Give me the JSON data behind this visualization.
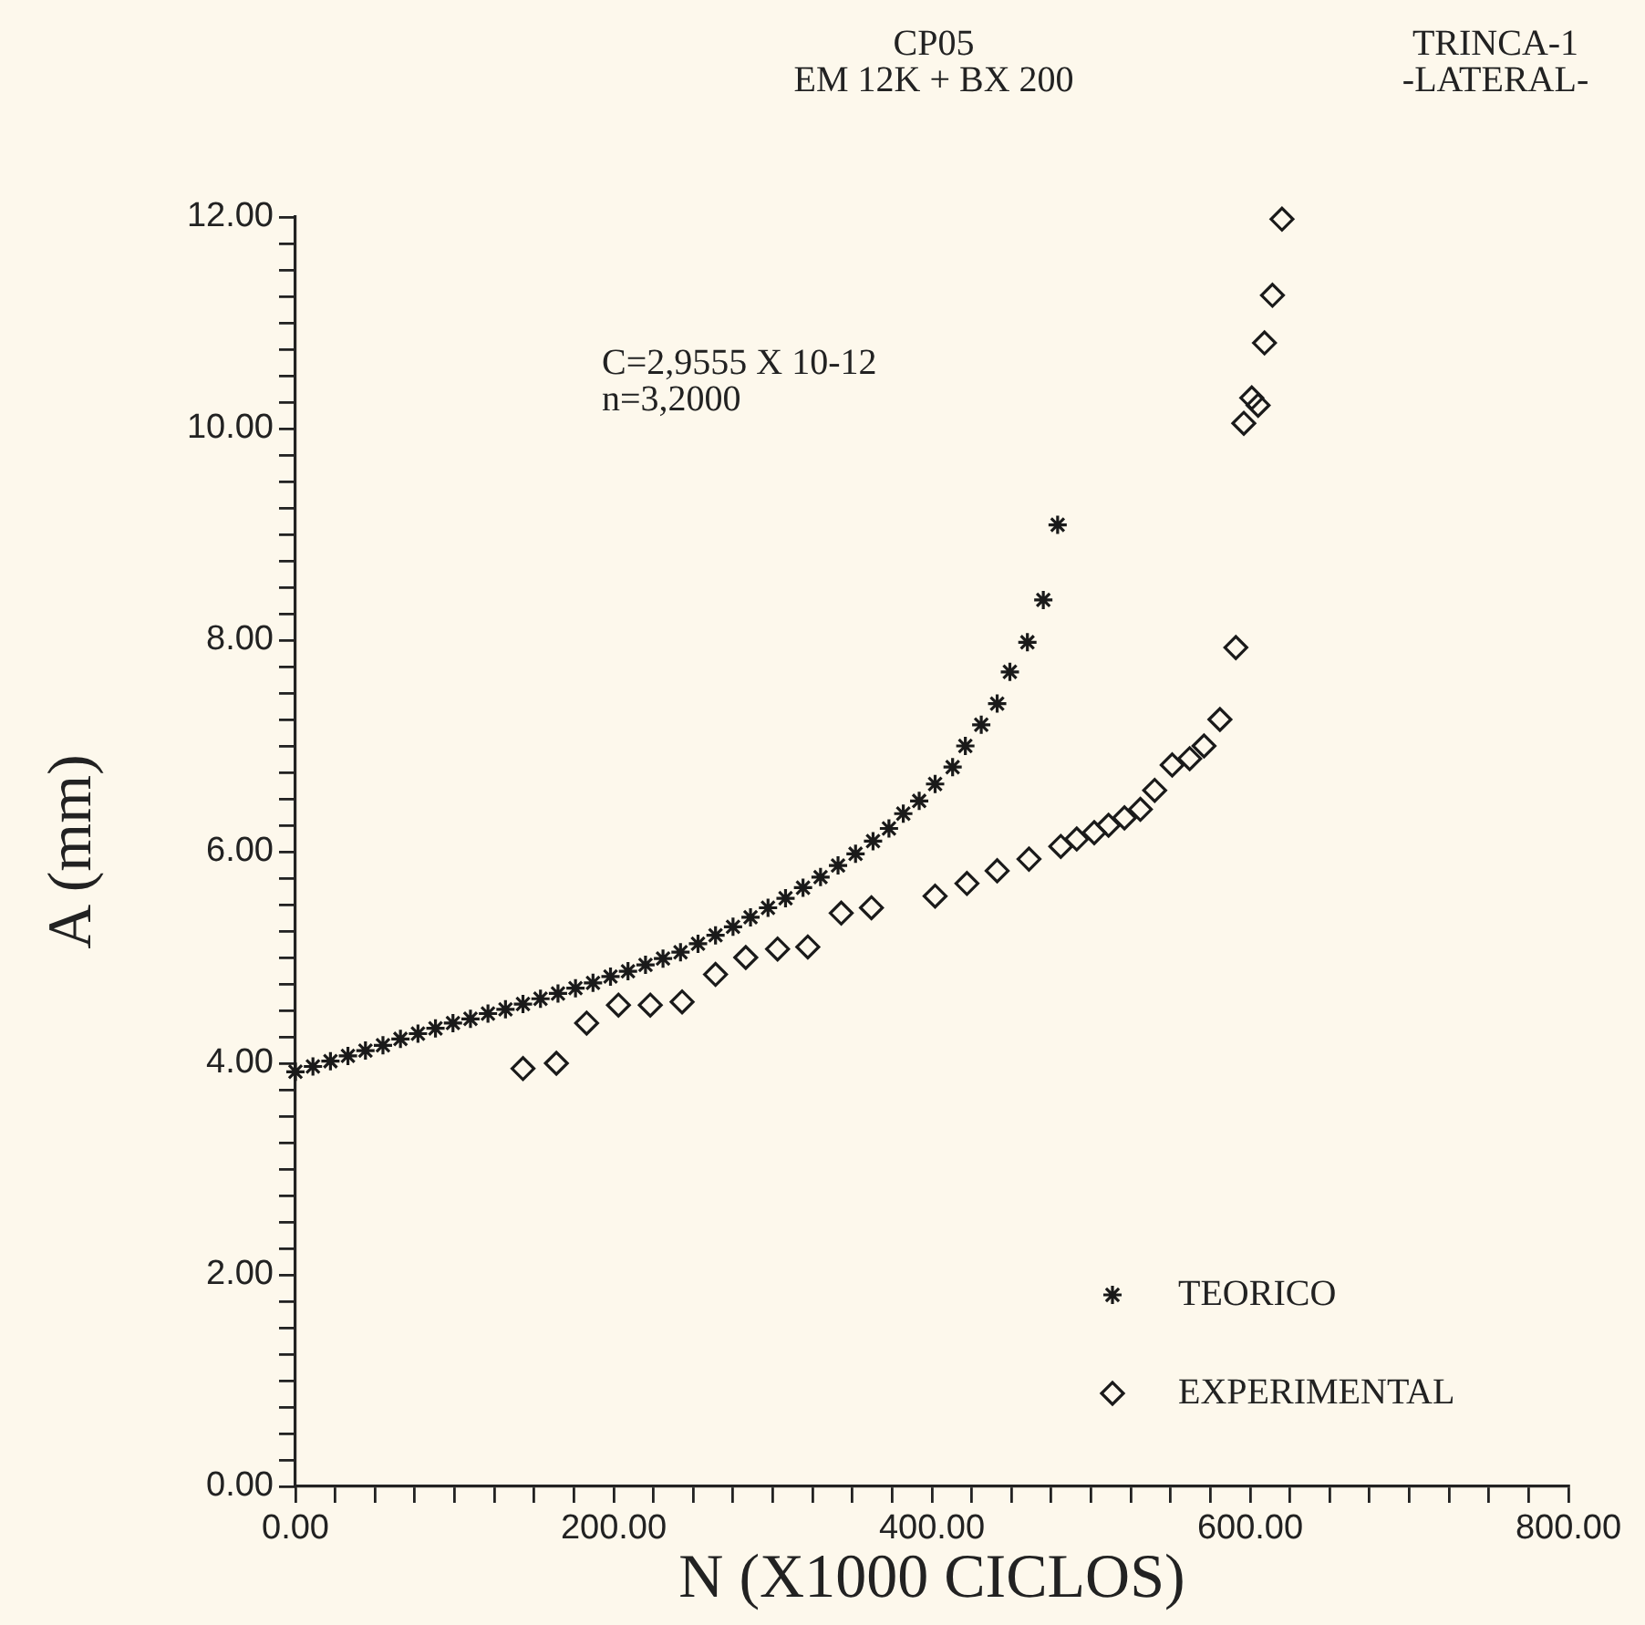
{
  "chart_data": {
    "type": "scatter",
    "title": "CP05",
    "subtitle": "EM 12K + BX 200",
    "xlabel": "N (X1000 CICLOS)",
    "ylabel": "A (mm)",
    "annotations": [
      "TRINCA-1\n-LATERAL-",
      "C=2,9555 X 10-12\nn=3,2000"
    ],
    "legend": "bottom right",
    "grid": false,
    "xlim": [
      0,
      800
    ],
    "ylim": [
      0,
      12
    ],
    "xticks": [
      {
        "value": 0,
        "label": "0.00"
      },
      {
        "value": 25,
        "label": null
      },
      {
        "value": 50,
        "label": null
      },
      {
        "value": 75,
        "label": null
      },
      {
        "value": 100,
        "label": null
      },
      {
        "value": 125,
        "label": null
      },
      {
        "value": 150,
        "label": null
      },
      {
        "value": 175,
        "label": null
      },
      {
        "value": 200,
        "label": "200.00"
      },
      {
        "value": 225,
        "label": null
      },
      {
        "value": 250,
        "label": null
      },
      {
        "value": 275,
        "label": null
      },
      {
        "value": 300,
        "label": null
      },
      {
        "value": 325,
        "label": null
      },
      {
        "value": 350,
        "label": null
      },
      {
        "value": 375,
        "label": null
      },
      {
        "value": 400,
        "label": "400.00"
      },
      {
        "value": 425,
        "label": null
      },
      {
        "value": 450,
        "label": null
      },
      {
        "value": 475,
        "label": null
      },
      {
        "value": 500,
        "label": null
      },
      {
        "value": 525,
        "label": null
      },
      {
        "value": 550,
        "label": null
      },
      {
        "value": 575,
        "label": null
      },
      {
        "value": 600,
        "label": "600.00"
      },
      {
        "value": 625,
        "label": null
      },
      {
        "value": 650,
        "label": null
      },
      {
        "value": 675,
        "label": null
      },
      {
        "value": 700,
        "label": null
      },
      {
        "value": 725,
        "label": null
      },
      {
        "value": 750,
        "label": null
      },
      {
        "value": 775,
        "label": null
      },
      {
        "value": 800,
        "label": "800.00"
      }
    ],
    "yticks": [
      {
        "value": 0,
        "label": "0.00"
      },
      {
        "value": 0.25,
        "label": null
      },
      {
        "value": 0.5,
        "label": null
      },
      {
        "value": 0.75,
        "label": null
      },
      {
        "value": 1,
        "label": null
      },
      {
        "value": 1.25,
        "label": null
      },
      {
        "value": 1.5,
        "label": null
      },
      {
        "value": 1.75,
        "label": null
      },
      {
        "value": 2,
        "label": "2.00"
      },
      {
        "value": 2.25,
        "label": null
      },
      {
        "value": 2.5,
        "label": null
      },
      {
        "value": 2.75,
        "label": null
      },
      {
        "value": 3,
        "label": null
      },
      {
        "value": 3.25,
        "label": null
      },
      {
        "value": 3.5,
        "label": null
      },
      {
        "value": 3.75,
        "label": null
      },
      {
        "value": 4,
        "label": "4.00"
      },
      {
        "value": 4.25,
        "label": null
      },
      {
        "value": 4.5,
        "label": null
      },
      {
        "value": 4.75,
        "label": null
      },
      {
        "value": 5,
        "label": null
      },
      {
        "value": 5.25,
        "label": null
      },
      {
        "value": 5.5,
        "label": null
      },
      {
        "value": 5.75,
        "label": null
      },
      {
        "value": 6,
        "label": "6.00"
      },
      {
        "value": 6.25,
        "label": null
      },
      {
        "value": 6.5,
        "label": null
      },
      {
        "value": 6.75,
        "label": null
      },
      {
        "value": 7,
        "label": null
      },
      {
        "value": 7.25,
        "label": null
      },
      {
        "value": 7.5,
        "label": null
      },
      {
        "value": 7.75,
        "label": null
      },
      {
        "value": 8,
        "label": "8.00"
      },
      {
        "value": 8.25,
        "label": null
      },
      {
        "value": 8.5,
        "label": null
      },
      {
        "value": 8.75,
        "label": null
      },
      {
        "value": 9,
        "label": null
      },
      {
        "value": 9.25,
        "label": null
      },
      {
        "value": 9.5,
        "label": null
      },
      {
        "value": 9.75,
        "label": null
      },
      {
        "value": 10,
        "label": "10.00"
      },
      {
        "value": 10.25,
        "label": null
      },
      {
        "value": 10.5,
        "label": null
      },
      {
        "value": 10.75,
        "label": null
      },
      {
        "value": 11,
        "label": null
      },
      {
        "value": 11.25,
        "label": null
      },
      {
        "value": 11.5,
        "label": null
      },
      {
        "value": 11.75,
        "label": null
      },
      {
        "value": 12,
        "label": "12.00"
      }
    ],
    "series": [
      {
        "name": "TEORICO",
        "color": "#1a1a1a",
        "marker": "cross",
        "x": [
          0,
          11,
          22,
          33,
          44,
          55,
          66,
          77,
          88,
          99,
          110,
          121,
          132,
          143,
          154,
          165,
          176,
          187,
          198,
          209,
          220,
          231,
          242,
          253,
          264,
          275,
          286,
          297,
          308,
          319,
          330,
          341,
          352,
          363,
          373,
          382,
          392,
          402,
          413,
          421,
          431,
          441,
          449,
          460,
          470,
          479
        ],
        "values": [
          3.92,
          3.97,
          4.02,
          4.07,
          4.12,
          4.17,
          4.23,
          4.28,
          4.33,
          4.38,
          4.42,
          4.47,
          4.51,
          4.56,
          4.61,
          4.66,
          4.71,
          4.76,
          4.82,
          4.87,
          4.93,
          4.99,
          5.05,
          5.13,
          5.21,
          5.29,
          5.38,
          5.47,
          5.56,
          5.66,
          5.76,
          5.87,
          5.98,
          6.1,
          6.22,
          6.36,
          6.48,
          6.64,
          6.8,
          7.0,
          7.2,
          7.4,
          7.7,
          7.98,
          8.38,
          9.09
        ]
      },
      {
        "name": "EXPERIMENTAL",
        "color": "#1a1a1a",
        "marker": "diamond",
        "x": [
          143,
          164,
          183,
          203,
          223,
          243,
          264,
          283,
          303,
          322,
          343,
          362,
          402,
          422,
          441,
          461,
          481,
          491,
          502,
          511,
          521,
          531,
          540,
          551,
          562,
          571,
          581,
          591,
          596,
          601,
          605,
          609,
          614,
          620
        ],
        "values": [
          3.95,
          4.0,
          4.38,
          4.55,
          4.55,
          4.58,
          4.84,
          5.0,
          5.08,
          5.1,
          5.42,
          5.47,
          5.58,
          5.7,
          5.82,
          5.93,
          6.05,
          6.12,
          6.18,
          6.25,
          6.32,
          6.4,
          6.58,
          6.82,
          6.88,
          7.0,
          7.25,
          7.93,
          10.05,
          10.29,
          10.22,
          10.81,
          11.26,
          11.98
        ]
      }
    ]
  }
}
